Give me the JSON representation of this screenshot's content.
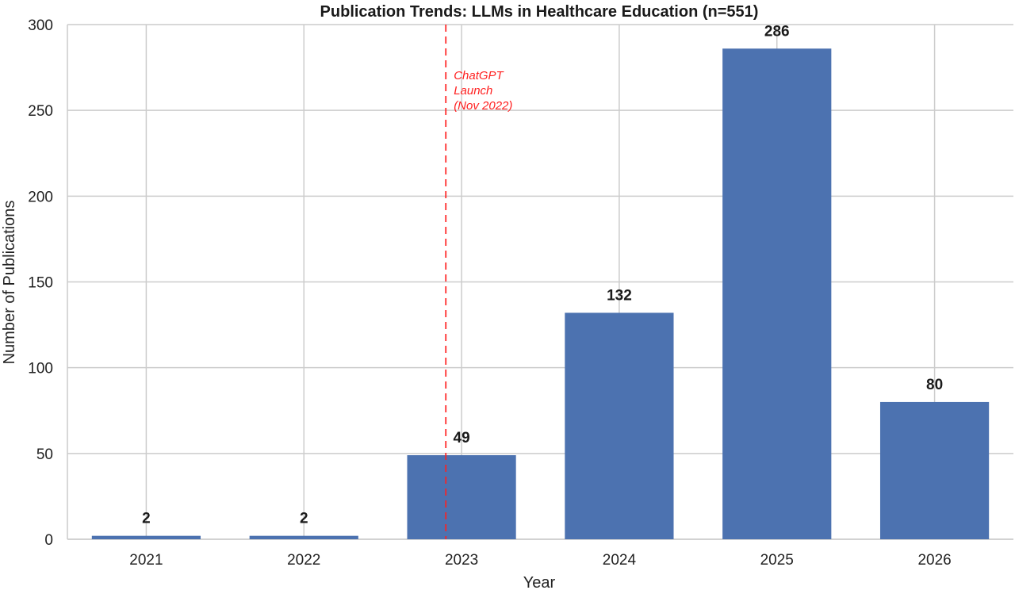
{
  "chart_data": {
    "type": "bar",
    "title": "Publication Trends: LLMs in Healthcare Education (n=551)",
    "xlabel": "Year",
    "ylabel": "Number of Publications",
    "categories": [
      "2021",
      "2022",
      "2023",
      "2024",
      "2025",
      "2026"
    ],
    "values": [
      2,
      2,
      49,
      132,
      286,
      80
    ],
    "data_labels": [
      "2",
      "2",
      "49",
      "132",
      "286",
      "80"
    ],
    "ylim": [
      0,
      300
    ],
    "yticks": [
      0,
      50,
      100,
      150,
      200,
      250,
      300
    ],
    "ytick_labels": [
      "0",
      "50",
      "100",
      "150",
      "200",
      "250",
      "300"
    ],
    "grid": true,
    "bar_color": "#4c72b0",
    "annotation": {
      "lines": [
        "ChatGPT",
        "Launch",
        "(Nov 2022)"
      ],
      "x_position": 2022.9,
      "color": "#ff2020",
      "style": "dashed"
    }
  }
}
